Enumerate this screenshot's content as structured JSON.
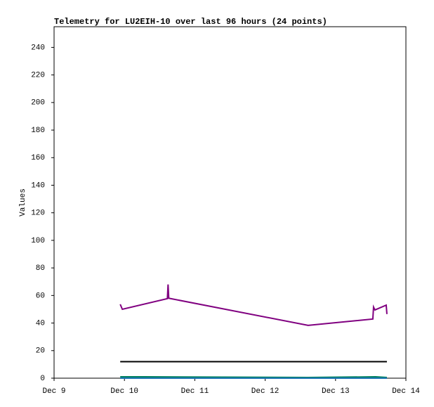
{
  "chart_data": {
    "type": "line",
    "title": "Telemetry for LU2EIH-10 over last 96 hours (24 points)",
    "y_label": "Values",
    "xlim": [
      9,
      14
    ],
    "xticks": [
      {
        "value": 9,
        "label": "Dec 9"
      },
      {
        "value": 10,
        "label": "Dec 10"
      },
      {
        "value": 11,
        "label": "Dec 11"
      },
      {
        "value": 12,
        "label": "Dec 12"
      },
      {
        "value": 13,
        "label": "Dec 13"
      },
      {
        "value": 14,
        "label": "Dec 14"
      }
    ],
    "ylim": [
      0,
      255
    ],
    "yticks": [
      0,
      20,
      40,
      60,
      80,
      100,
      120,
      140,
      160,
      180,
      200,
      220,
      240
    ],
    "series": [
      {
        "color": "#800080",
        "x": [
          9.94,
          9.97,
          10.61,
          10.62,
          10.63,
          12.61,
          13.53,
          13.54,
          13.56,
          13.72,
          13.73
        ],
        "values": [
          53.6,
          50,
          57.7,
          68,
          58,
          38.3,
          42.9,
          51.6,
          49.5,
          53,
          46.5
        ]
      },
      {
        "color": "#000000",
        "x": [
          9.94,
          13.73
        ],
        "values": [
          12,
          12
        ]
      },
      {
        "color": "#008060",
        "x": [
          9.94,
          10.28,
          12.61,
          13.57,
          13.73
        ],
        "values": [
          1,
          1,
          0.5,
          1,
          0.5
        ]
      },
      {
        "color": "#1f77b4",
        "x": [
          9.94,
          13.73
        ],
        "values": [
          0,
          0
        ]
      }
    ]
  }
}
